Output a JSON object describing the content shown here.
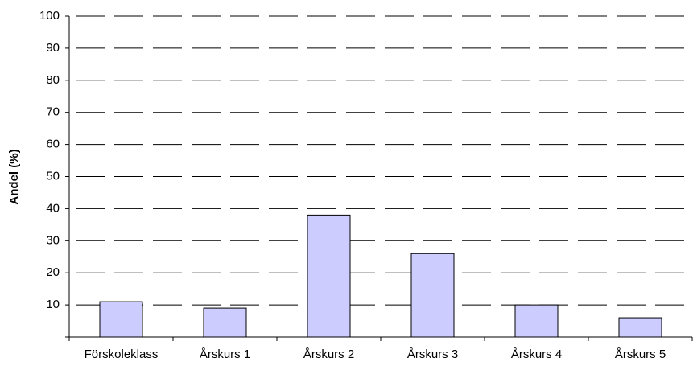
{
  "chart_data": {
    "type": "bar",
    "y_label": "Andel (%)",
    "categories": [
      "Förskoleklass",
      "Årskurs 1",
      "Årskurs 2",
      "Årskurs 3",
      "Årskurs 4",
      "Årskurs 5"
    ],
    "values": [
      11,
      9,
      38,
      26,
      10,
      6
    ],
    "color": "#ccccff",
    "ylim": [
      0,
      100
    ],
    "yticks": [
      10,
      20,
      30,
      40,
      50,
      60,
      70,
      80,
      90,
      100
    ],
    "grid": true
  }
}
